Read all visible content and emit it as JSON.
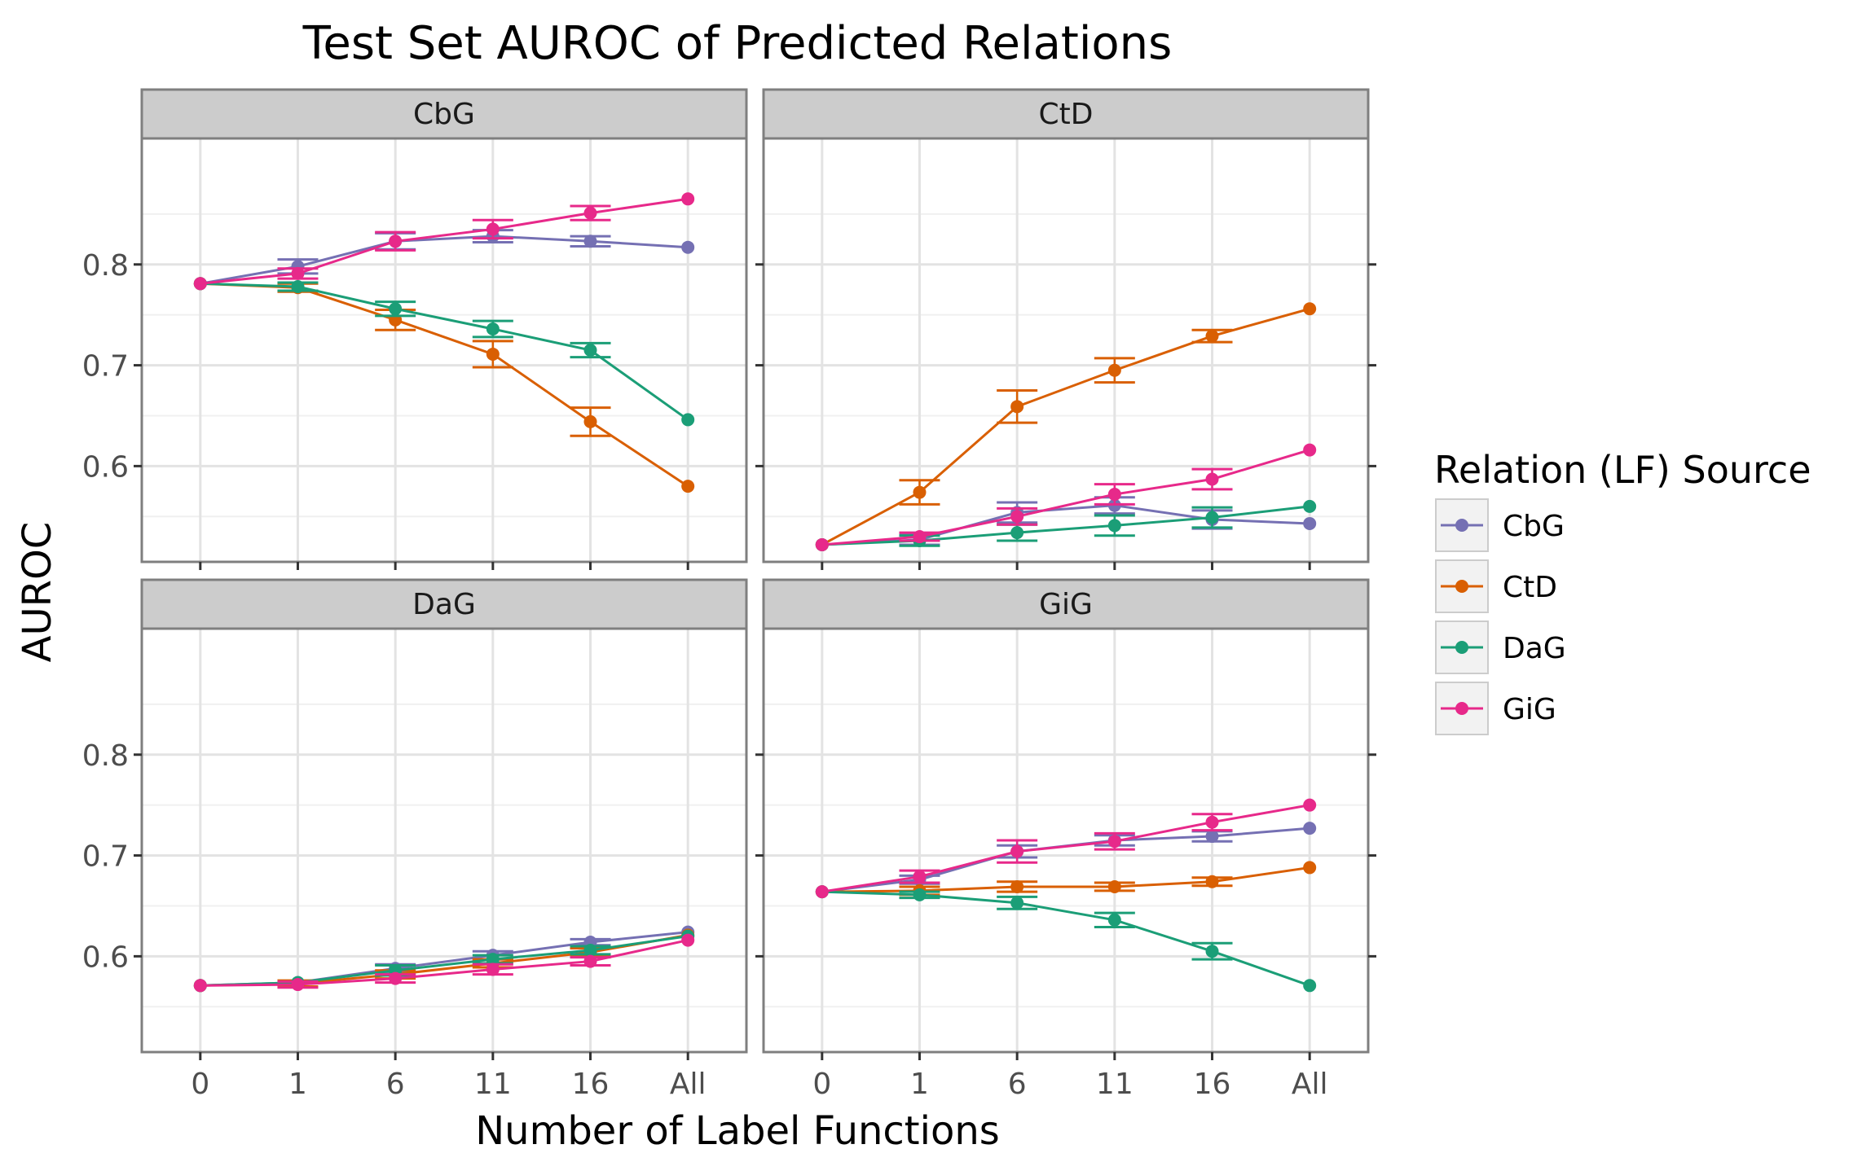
{
  "chart_data": {
    "type": "line",
    "title": "Test Set AUROC of Predicted Relations",
    "xlabel": "Number of Label Functions",
    "ylabel": "AUROC",
    "categories": [
      "0",
      "1",
      "6",
      "11",
      "16",
      "All"
    ],
    "ylim": [
      0.505,
      0.925
    ],
    "yticks": [
      0.6,
      0.7,
      0.8
    ],
    "ytick_labels": [
      "0.6",
      "0.7",
      "0.8"
    ],
    "grid": true,
    "legend": {
      "title": "Relation (LF) Source",
      "position": "right",
      "entries": [
        "CbG",
        "CtD",
        "DaG",
        "GiG"
      ]
    },
    "colors": {
      "CbG": "#7570b3",
      "CtD": "#d95f02",
      "DaG": "#1b9e77",
      "GiG": "#e7298a"
    },
    "panels": [
      {
        "name": "CbG",
        "series": [
          {
            "name": "CbG",
            "values": [
              0.781,
              0.798,
              0.823,
              0.828,
              0.823,
              0.817
            ],
            "errors": [
              0.002,
              0.007,
              0.008,
              0.006,
              0.005,
              0.002
            ]
          },
          {
            "name": "CtD",
            "values": [
              0.781,
              0.777,
              0.745,
              0.711,
              0.644,
              0.58
            ],
            "errors": [
              0.002,
              0.004,
              0.01,
              0.013,
              0.014,
              0.002
            ]
          },
          {
            "name": "DaG",
            "values": [
              0.781,
              0.778,
              0.756,
              0.736,
              0.715,
              0.646
            ],
            "errors": [
              0.002,
              0.004,
              0.007,
              0.008,
              0.007,
              0.002
            ]
          },
          {
            "name": "GiG",
            "values": [
              0.781,
              0.791,
              0.823,
              0.835,
              0.851,
              0.865
            ],
            "errors": [
              0.002,
              0.005,
              0.009,
              0.009,
              0.007,
              0.002
            ]
          }
        ]
      },
      {
        "name": "CtD",
        "series": [
          {
            "name": "CbG",
            "values": [
              0.522,
              0.527,
              0.554,
              0.561,
              0.547,
              0.543
            ],
            "errors": [
              0.002,
              0.005,
              0.01,
              0.008,
              0.009,
              0.002
            ]
          },
          {
            "name": "CtD",
            "values": [
              0.522,
              0.574,
              0.659,
              0.695,
              0.729,
              0.756
            ],
            "errors": [
              0.002,
              0.012,
              0.016,
              0.012,
              0.006,
              0.002
            ]
          },
          {
            "name": "DaG",
            "values": [
              0.522,
              0.526,
              0.534,
              0.541,
              0.549,
              0.56
            ],
            "errors": [
              0.002,
              0.005,
              0.008,
              0.01,
              0.01,
              0.002
            ]
          },
          {
            "name": "GiG",
            "values": [
              0.522,
              0.53,
              0.55,
              0.572,
              0.587,
              0.616
            ],
            "errors": [
              0.002,
              0.004,
              0.008,
              0.01,
              0.01,
              0.002
            ]
          }
        ]
      },
      {
        "name": "DaG",
        "series": [
          {
            "name": "CbG",
            "values": [
              0.571,
              0.574,
              0.588,
              0.601,
              0.614,
              0.624
            ],
            "errors": [
              0.002,
              0.002,
              0.004,
              0.004,
              0.003,
              0.002
            ]
          },
          {
            "name": "CtD",
            "values": [
              0.571,
              0.573,
              0.582,
              0.593,
              0.604,
              0.621
            ],
            "errors": [
              0.002,
              0.003,
              0.004,
              0.004,
              0.004,
              0.002
            ]
          },
          {
            "name": "DaG",
            "values": [
              0.571,
              0.574,
              0.586,
              0.597,
              0.606,
              0.62
            ],
            "errors": [
              0.002,
              0.002,
              0.005,
              0.004,
              0.004,
              0.002
            ]
          },
          {
            "name": "GiG",
            "values": [
              0.571,
              0.572,
              0.578,
              0.587,
              0.595,
              0.616
            ],
            "errors": [
              0.002,
              0.003,
              0.004,
              0.005,
              0.004,
              0.002
            ]
          }
        ]
      },
      {
        "name": "GiG",
        "series": [
          {
            "name": "CbG",
            "values": [
              0.664,
              0.676,
              0.704,
              0.715,
              0.719,
              0.727
            ],
            "errors": [
              0.002,
              0.004,
              0.006,
              0.005,
              0.005,
              0.002
            ]
          },
          {
            "name": "CtD",
            "values": [
              0.664,
              0.665,
              0.669,
              0.669,
              0.674,
              0.688
            ],
            "errors": [
              0.002,
              0.004,
              0.005,
              0.004,
              0.004,
              0.002
            ]
          },
          {
            "name": "DaG",
            "values": [
              0.664,
              0.661,
              0.653,
              0.636,
              0.605,
              0.571
            ],
            "errors": [
              0.002,
              0.003,
              0.006,
              0.007,
              0.008,
              0.002
            ]
          },
          {
            "name": "GiG",
            "values": [
              0.664,
              0.679,
              0.704,
              0.714,
              0.733,
              0.75
            ],
            "errors": [
              0.002,
              0.006,
              0.011,
              0.008,
              0.008,
              0.002
            ]
          }
        ]
      }
    ]
  }
}
